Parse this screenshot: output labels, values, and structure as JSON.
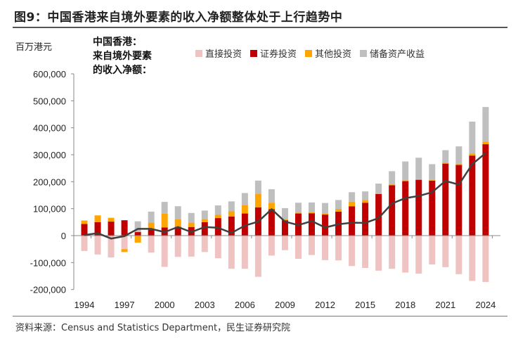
{
  "title": "图9：中国香港来自境外要素的收入净额整体处于上行趋势中",
  "source": "资料来源：Census and Statistics Department，民生证券研究院",
  "chart_data": {
    "type": "bar",
    "stacked": true,
    "ylabel": "百万港元",
    "annotation": [
      "中国香港：",
      "来自境外要素",
      "的收入净额："
    ],
    "ylim": [
      -200000,
      600000
    ],
    "yticks": [
      600000,
      500000,
      400000,
      300000,
      200000,
      100000,
      0,
      -100000,
      -200000
    ],
    "ytick_labels": [
      "600,000",
      "500,000",
      "400,000",
      "300,000",
      "200,000",
      "100,000",
      "0",
      "-100,000",
      "-200,000"
    ],
    "xtick_labels": [
      "1994",
      "1997",
      "2000",
      "2003",
      "2006",
      "2009",
      "2012",
      "2015",
      "2018",
      "2021",
      "2024"
    ],
    "legend_position": "top",
    "categories": [
      "1994",
      "1995",
      "1996",
      "1997",
      "1998",
      "1999",
      "2000",
      "2001",
      "2002",
      "2003",
      "2004",
      "2005",
      "2006",
      "2007",
      "2008",
      "2009",
      "2010",
      "2011",
      "2012",
      "2013",
      "2014",
      "2015",
      "2016",
      "2017",
      "2018",
      "2019",
      "2020",
      "2021",
      "2022",
      "2023",
      "2024"
    ],
    "series": [
      {
        "name": "直接投资",
        "color": "#f0c3c3",
        "values": [
          -57000,
          -70000,
          -81000,
          -50000,
          0,
          -63000,
          -116000,
          -79000,
          -78000,
          -61000,
          -84000,
          -123000,
          -123000,
          -153000,
          -74000,
          -54000,
          -86000,
          -72000,
          -91000,
          -92000,
          -113000,
          -120000,
          -130000,
          -123000,
          -137000,
          -141000,
          -107000,
          -117000,
          -143000,
          -168000,
          -172000
        ]
      },
      {
        "name": "证券投资",
        "color": "#c00000",
        "values": [
          43000,
          50000,
          52000,
          57000,
          13000,
          22000,
          30000,
          33000,
          32000,
          50000,
          65000,
          71000,
          82000,
          105000,
          98000,
          57000,
          82000,
          83000,
          78000,
          89000,
          109000,
          122000,
          154000,
          187000,
          202000,
          207000,
          204000,
          267000,
          262000,
          297000,
          339000
        ]
      },
      {
        "name": "其他投资",
        "color": "#ffa500",
        "values": [
          13000,
          25000,
          14000,
          -11000,
          -26000,
          26000,
          51000,
          28000,
          16000,
          10000,
          13000,
          19000,
          32000,
          50000,
          24000,
          5000,
          3000,
          4000,
          4000,
          10000,
          17000,
          10000,
          3000,
          3000,
          3000,
          2000,
          3000,
          4000,
          5000,
          7000,
          10000
        ]
      },
      {
        "name": "储备资产收益",
        "color": "#bfbfbf",
        "values": [
          0,
          0,
          0,
          0,
          40000,
          41000,
          44000,
          48000,
          36000,
          33000,
          34000,
          37000,
          44000,
          49000,
          50000,
          40000,
          37000,
          36000,
          39000,
          33000,
          35000,
          32000,
          36000,
          49000,
          70000,
          80000,
          58000,
          46000,
          64000,
          119000,
          128000
        ]
      }
    ],
    "line": {
      "color": "#404040",
      "values": [
        2000,
        9000,
        -11000,
        -2000,
        25000,
        25000,
        13000,
        32000,
        13000,
        32000,
        29000,
        10000,
        37000,
        52000,
        98000,
        52000,
        39000,
        54000,
        30000,
        42000,
        48000,
        47000,
        65000,
        119000,
        139000,
        147000,
        161000,
        203000,
        189000,
        265000,
        306000
      ]
    }
  }
}
